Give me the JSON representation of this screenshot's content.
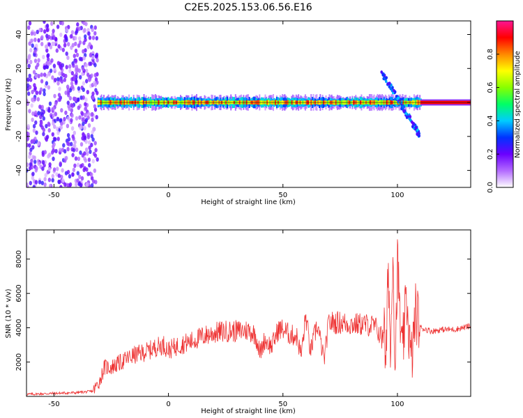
{
  "title": "C2E5.2025.153.06.56.E16",
  "chart_data": [
    {
      "type": "heatmap",
      "xlabel": "Height of straight line (km)",
      "ylabel": "Frequency (Hz)",
      "xlim": [
        -62,
        132
      ],
      "ylim": [
        -50,
        48
      ],
      "xticks": [
        -50,
        0,
        50,
        100
      ],
      "yticks": [
        -40,
        -20,
        0,
        20,
        40
      ],
      "colorbar": {
        "label": "Normalized spectral amplitude",
        "range": [
          0,
          1
        ],
        "ticks": [
          "0.0",
          "0.2",
          "0.4",
          "0.6",
          "0.8"
        ],
        "colors": [
          "#ffffff",
          "#b36bff",
          "#6a00ff",
          "#0033ff",
          "#00ccff",
          "#00ff66",
          "#88ff00",
          "#ffff00",
          "#ff8800",
          "#ff0000",
          "#ff1493"
        ]
      },
      "regions": [
        {
          "x": [
            -62,
            -31
          ],
          "y": [
            -50,
            48
          ],
          "amplitude": "broadband noise 0.05-0.25"
        },
        {
          "x": [
            -31,
            110
          ],
          "y": [
            -3,
            3
          ],
          "amplitude": "narrow band centered at 0 Hz, 0.6-1.0"
        },
        {
          "x": [
            93,
            110
          ],
          "y": [
            -20,
            18
          ],
          "amplitude": "diagonal streak 0.2-0.4"
        },
        {
          "x": [
            110,
            132
          ],
          "y": [
            -1,
            1
          ],
          "amplitude": "flat line 0.9"
        }
      ]
    },
    {
      "type": "line",
      "xlabel": "Height of straight line (km)",
      "ylabel": "SNR (10 * v/v)",
      "xlim": [
        -62,
        132
      ],
      "ylim": [
        0,
        9700
      ],
      "xticks": [
        -50,
        0,
        50,
        100
      ],
      "yticks": [
        2000,
        4000,
        6000,
        8000
      ],
      "color": "#ee3333",
      "series": [
        {
          "x": [
            -62,
            -40,
            -33,
            -30,
            -28,
            -25,
            -22,
            -18,
            -15,
            -12,
            -8,
            -5,
            -2,
            0,
            5,
            10,
            15,
            20,
            25,
            30,
            35,
            38,
            40,
            42,
            45,
            48,
            50,
            53,
            56,
            58,
            60,
            62,
            65,
            68,
            70,
            75,
            80,
            85,
            90,
            93,
            94,
            95,
            96,
            97,
            98,
            99,
            100,
            102,
            104,
            106,
            108,
            110,
            115,
            120,
            125,
            132
          ],
          "y": [
            120,
            220,
            300,
            900,
            1700,
            1700,
            1900,
            2200,
            2400,
            2500,
            2700,
            2900,
            3000,
            2700,
            3000,
            3200,
            3500,
            3700,
            3800,
            3800,
            3850,
            3600,
            2500,
            3300,
            2900,
            3900,
            3900,
            3600,
            3500,
            2400,
            4700,
            2600,
            4200,
            2100,
            4300,
            4300,
            4200,
            4200,
            4100,
            3500,
            4700,
            1200,
            8200,
            2000,
            9200,
            1500,
            7800,
            2200,
            5800,
            1800,
            5000,
            4000,
            3800,
            3900,
            3900,
            4100
          ]
        }
      ]
    }
  ]
}
